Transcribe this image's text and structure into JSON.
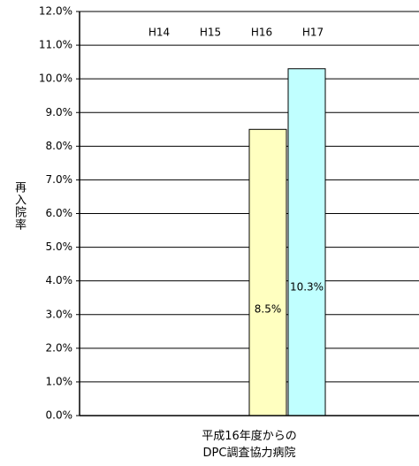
{
  "chart_data": {
    "type": "bar",
    "y_label": "再入院率",
    "categories": [
      "平成16年度からの\nDPC調査協力病院"
    ],
    "series": [
      {
        "name": "H14",
        "values": [
          null
        ]
      },
      {
        "name": "H15",
        "values": [
          null
        ]
      },
      {
        "name": "H16",
        "color": "#ffffc0",
        "values": [
          8.5
        ],
        "value_labels": [
          "8.5%"
        ]
      },
      {
        "name": "H17",
        "color": "#c0ffff",
        "values": [
          10.3
        ],
        "value_labels": [
          "10.3%"
        ]
      }
    ],
    "ylim": [
      0,
      12
    ],
    "yticks": [
      {
        "value": 0,
        "label": "0.0%"
      },
      {
        "value": 1,
        "label": "1.0%"
      },
      {
        "value": 2,
        "label": "2.0%"
      },
      {
        "value": 3,
        "label": "3.0%"
      },
      {
        "value": 4,
        "label": "4.0%"
      },
      {
        "value": 5,
        "label": "5.0%"
      },
      {
        "value": 6,
        "label": "6.0%"
      },
      {
        "value": 7,
        "label": "7.0%"
      },
      {
        "value": 8,
        "label": "8.0%"
      },
      {
        "value": 9,
        "label": "9.0%"
      },
      {
        "value": 10,
        "label": "10.0%"
      },
      {
        "value": 11,
        "label": "11.0%"
      },
      {
        "value": 12,
        "label": "12.0%"
      }
    ],
    "grid": true
  }
}
